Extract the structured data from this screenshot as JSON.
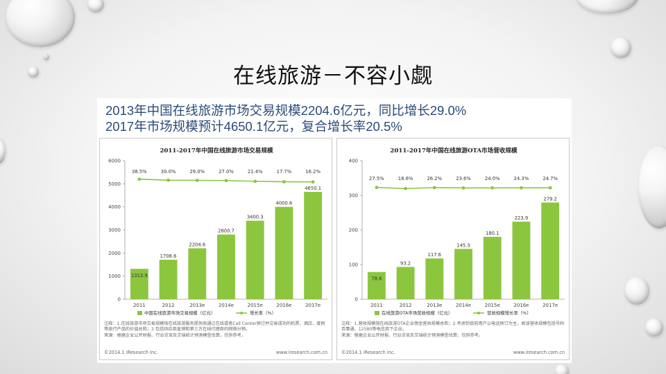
{
  "slide": {
    "title": "在线旅游－不容小觑",
    "headline_line1": "2013年中国在线旅游市场交易规模2204.6亿元，同比增长29.0%",
    "headline_line2": "2017年市场规模预计4650.1亿元，复合增长率20.5%"
  },
  "colors": {
    "bar": "#8cc63e",
    "line": "#8cc63e",
    "headline": "#2a4a7a"
  },
  "chart_data": [
    {
      "type": "bar",
      "title": "2011-2017年中国在线旅游市场交易规模",
      "categories": [
        "2011",
        "2012",
        "2013e",
        "2014e",
        "2015e",
        "2016e",
        "2017e"
      ],
      "values": [
        1313.9,
        1708.6,
        2204.6,
        2800.7,
        3400.3,
        4000.6,
        4650.1
      ],
      "value_labels": [
        "1313.9",
        "1708.6",
        "2204.6",
        "2800.7",
        "3400.3",
        "4000.6",
        "4650.1"
      ],
      "ylim": [
        0,
        6000
      ],
      "yticks": [
        "0",
        "1000",
        "2000",
        "3000",
        "4000",
        "5000",
        "6000"
      ],
      "line_series": {
        "name": "增长率（%）",
        "values": [
          38.5,
          30.0,
          29.0,
          27.0,
          21.4,
          17.7,
          16.2
        ],
        "labels": [
          "38.5%",
          "30.0%",
          "29.0%",
          "27.0%",
          "21.4%",
          "17.7%",
          "16.2%"
        ]
      },
      "bar_series_name": "中国在线旅游市场交易规模（亿元）",
      "legend": "bottom",
      "grid": false,
      "note": "注释：1.在线旅游市场交易规模指在线旅游服务提供商通过在线或者Call Center预订并交易成功的机票、酒店、度假等旅行产品的价值总和；2.包括供应商直销和第三方在线代理商的网络分销。\n来源：根据企业公开财报、行业访谈及艾瑞统计预测模型估算，仅供参考。",
      "footer_left": "©2014.1 iResearch Inc.",
      "footer_right": "www.iresearch.com.cn"
    },
    {
      "type": "bar",
      "title": "2011-2017年中国在线旅游OTA市场营收规模",
      "categories": [
        "2011",
        "2012",
        "2013e",
        "2014e",
        "2015e",
        "2016e",
        "2017e"
      ],
      "values": [
        78.6,
        93.2,
        117.6,
        145.3,
        180.1,
        223.9,
        279.2
      ],
      "value_labels": [
        "78.6",
        "93.2",
        "117.6",
        "145.3",
        "180.1",
        "223.9",
        "279.2"
      ],
      "ylim": [
        0,
        400
      ],
      "yticks": [
        "0",
        "100",
        "200",
        "300",
        "400"
      ],
      "line_series": {
        "name": "营收规模增长率（%）",
        "values": [
          27.5,
          18.6,
          26.2,
          23.6,
          24.0,
          24.3,
          24.7
        ],
        "labels": [
          "27.5%",
          "18.6%",
          "26.2%",
          "23.6%",
          "24.0%",
          "24.3%",
          "24.7%"
        ]
      },
      "bar_series_name": "在线旅游OTA市场营收规模（亿元）",
      "legend": "bottom",
      "grid": false,
      "note": "注释：1.营收规模指在线旅游OTA企业佣金营收规模总和；2.考虑到目前用户以电话预订为主，故该营收规模包括号码百事通、12580等电信商下企业。\n来源：根据企业公开财报、行业访谈及艾瑞统计预测模型估算，仅供参考。",
      "footer_left": "©2014.1 iResearch Inc.",
      "footer_right": "www.iresearch.com.cn"
    }
  ]
}
